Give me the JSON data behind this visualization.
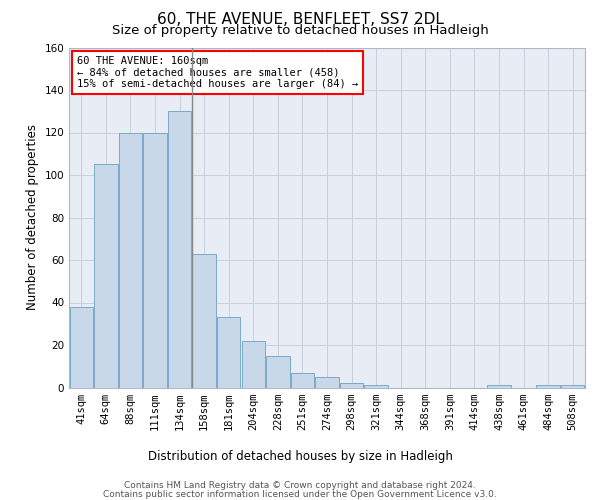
{
  "title": "60, THE AVENUE, BENFLEET, SS7 2DL",
  "subtitle": "Size of property relative to detached houses in Hadleigh",
  "xlabel": "Distribution of detached houses by size in Hadleigh",
  "ylabel": "Number of detached properties",
  "footer_line1": "Contains HM Land Registry data © Crown copyright and database right 2024.",
  "footer_line2": "Contains public sector information licensed under the Open Government Licence v3.0.",
  "bar_labels": [
    "41sqm",
    "64sqm",
    "88sqm",
    "111sqm",
    "134sqm",
    "158sqm",
    "181sqm",
    "204sqm",
    "228sqm",
    "251sqm",
    "274sqm",
    "298sqm",
    "321sqm",
    "344sqm",
    "368sqm",
    "391sqm",
    "414sqm",
    "438sqm",
    "461sqm",
    "484sqm",
    "508sqm"
  ],
  "bar_values": [
    38,
    105,
    120,
    120,
    130,
    63,
    33,
    22,
    15,
    7,
    5,
    2,
    1,
    0,
    0,
    0,
    0,
    1,
    0,
    1,
    1
  ],
  "bar_color": "#c8d8e8",
  "bar_edge_color": "#7aaac8",
  "property_line_index": 5,
  "annotation_text": "60 THE AVENUE: 160sqm\n← 84% of detached houses are smaller (458)\n15% of semi-detached houses are larger (84) →",
  "annotation_box_color": "white",
  "annotation_box_edge_color": "red",
  "vline_color": "#888888",
  "ylim": [
    0,
    160
  ],
  "yticks": [
    0,
    20,
    40,
    60,
    80,
    100,
    120,
    140,
    160
  ],
  "grid_color": "#c8d0dc",
  "bg_color": "#e8ecf4",
  "title_fontsize": 11,
  "subtitle_fontsize": 9.5,
  "axis_label_fontsize": 8.5,
  "tick_fontsize": 7.5,
  "footer_fontsize": 6.5,
  "annotation_fontsize": 7.5
}
